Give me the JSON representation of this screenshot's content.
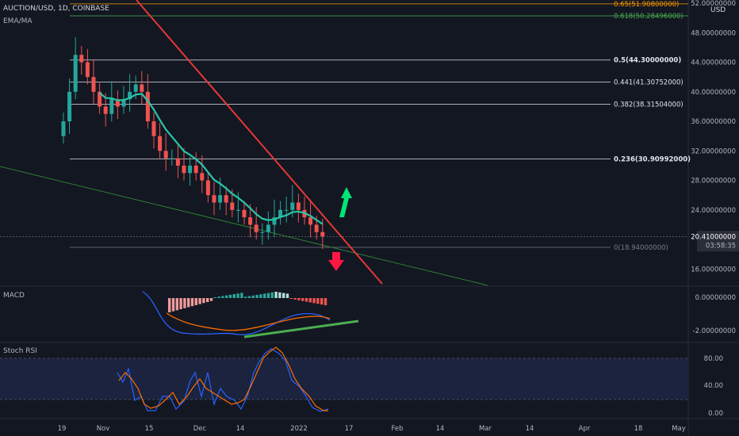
{
  "header": {
    "symbol": "AUCTION/USD, 1D, COINBASE",
    "indicator": "EMA/MA",
    "currency": "USD"
  },
  "panes": {
    "macd_label": "MACD",
    "stoch_label": "Stoch RSI"
  },
  "colors": {
    "background": "#131722",
    "up_candle": "#26a69a",
    "down_candle": "#ef5350",
    "ema": "#26c6a8",
    "trendline_red": "#e53935",
    "trendline_green": "#2e7d32",
    "fib_top": "#ff9800",
    "fib_618": "#4caf50",
    "fib_levels": "#e0e3eb",
    "price_badge": "#2a2e39",
    "macd_line": "#2962ff",
    "signal_line": "#ff6d00",
    "divergence": "#4caf50",
    "stoch_k": "#2962ff",
    "stoch_d": "#ff6d00",
    "stoch_band": "#1f2a4a"
  },
  "chart_data": [
    {
      "type": "candlestick",
      "title": "AUCTION/USD, 1D, COINBASE",
      "ylim": [
        14,
        52
      ],
      "y_ticks": [
        "52.00000000",
        "48.00000000",
        "44.00000000",
        "40.00000000",
        "36.00000000",
        "32.00000000",
        "28.00000000",
        "24.00000000",
        "20.41000000",
        "16.00000000"
      ],
      "x_ticks": [
        "19",
        "Nov",
        "15",
        "Dec",
        "14",
        "2022",
        "17",
        "Feb",
        "14",
        "Mar",
        "14",
        "Apr",
        "18",
        "May"
      ],
      "current_price": "20.41000000",
      "countdown": "03:58:35",
      "fib_levels": [
        {
          "label": "0.65(51.90800000)",
          "value": 51.908
        },
        {
          "label": "0.618(50.28496000)",
          "value": 50.285
        },
        {
          "label": "0.5(44.30000000)",
          "value": 44.3
        },
        {
          "label": "0.441(41.30752000)",
          "value": 41.308
        },
        {
          "label": "0.382(38.31504000)",
          "value": 38.315
        },
        {
          "label": "0.236(30.90992000)",
          "value": 30.91
        },
        {
          "label": "0(18.94000000)",
          "value": 18.94
        }
      ],
      "closes_approx": [
        36,
        40,
        45,
        44,
        42,
        40,
        38,
        37,
        39,
        38,
        39,
        40,
        41,
        40,
        36,
        34,
        32,
        31,
        31,
        30,
        29,
        30,
        29,
        28,
        26,
        25,
        26,
        25,
        24,
        24,
        23,
        22,
        21,
        21,
        22,
        23,
        24,
        24,
        25,
        24,
        23,
        22,
        21,
        20.4
      ]
    },
    {
      "type": "line",
      "title": "MACD",
      "y_ticks": [
        "0.00000000",
        "-2.00000000"
      ]
    },
    {
      "type": "line",
      "title": "Stoch RSI",
      "y_ticks": [
        "80.00",
        "40.00",
        "0.00"
      ]
    }
  ]
}
